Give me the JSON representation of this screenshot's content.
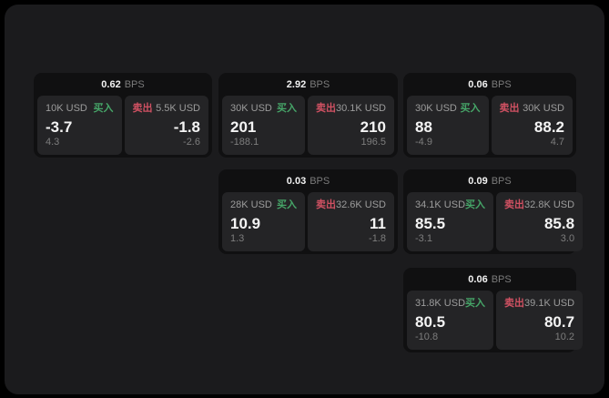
{
  "labels": {
    "bps": "BPS",
    "buy": "买入",
    "sell": "卖出"
  },
  "colors": {
    "background": "#000000",
    "window_bg": "#1b1b1d",
    "card_bg": "#101011",
    "panel_bg": "#242426",
    "buy_green": "#46a568",
    "sell_red": "#d05162",
    "primary_text": "#f4f4f4",
    "muted_text": "#9c9c9c",
    "delta_text": "#7d7d7d"
  },
  "cards": [
    {
      "bps": "0.62",
      "buy": {
        "size": "10K USD",
        "price": "-3.7",
        "delta": "4.3"
      },
      "sell": {
        "size": "5.5K USD",
        "price": "-1.8",
        "delta": "-2.6"
      }
    },
    {
      "bps": "2.92",
      "buy": {
        "size": "30K USD",
        "price": "201",
        "delta": "-188.1"
      },
      "sell": {
        "size": "30.1K USD",
        "price": "210",
        "delta": "196.5"
      }
    },
    {
      "bps": "0.06",
      "buy": {
        "size": "30K USD",
        "price": "88",
        "delta": "-4.9"
      },
      "sell": {
        "size": "30K USD",
        "price": "88.2",
        "delta": "4.7"
      }
    },
    {
      "bps": "0.03",
      "buy": {
        "size": "28K USD",
        "price": "10.9",
        "delta": "1.3"
      },
      "sell": {
        "size": "32.6K USD",
        "price": "11",
        "delta": "-1.8"
      }
    },
    {
      "bps": "0.09",
      "buy": {
        "size": "34.1K USD",
        "price": "85.5",
        "delta": "-3.1"
      },
      "sell": {
        "size": "32.8K USD",
        "price": "85.8",
        "delta": "3.0"
      }
    },
    {
      "bps": "0.06",
      "buy": {
        "size": "31.8K USD",
        "price": "80.5",
        "delta": "-10.8"
      },
      "sell": {
        "size": "39.1K USD",
        "price": "80.7",
        "delta": "10.2"
      }
    }
  ]
}
